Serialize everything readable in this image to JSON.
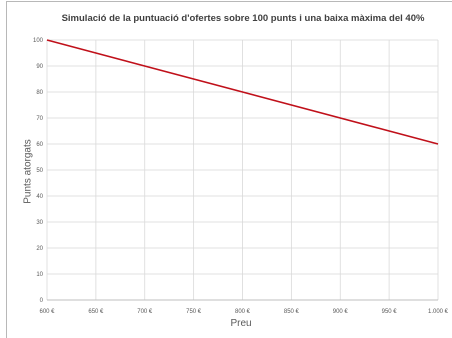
{
  "chart_data": {
    "type": "line",
    "title": "Simulació de la puntuació d'ofertes sobre 100 punts i una baixa màxima del 40%",
    "xlabel": "Preu",
    "ylabel": "Punts atorgats",
    "x_tick_labels": [
      "600 €",
      "650 €",
      "700 €",
      "750 €",
      "800 €",
      "850 €",
      "900 €",
      "950 €",
      "1.000 €"
    ],
    "y_tick_labels": [
      "0",
      "10",
      "20",
      "30",
      "40",
      "50",
      "60",
      "70",
      "80",
      "90",
      "100"
    ],
    "xlim": [
      600,
      1000
    ],
    "ylim": [
      0,
      100
    ],
    "grid": true,
    "series": [
      {
        "color": "#c0101a",
        "x": [
          600,
          1000
        ],
        "y": [
          100,
          60
        ]
      }
    ]
  }
}
